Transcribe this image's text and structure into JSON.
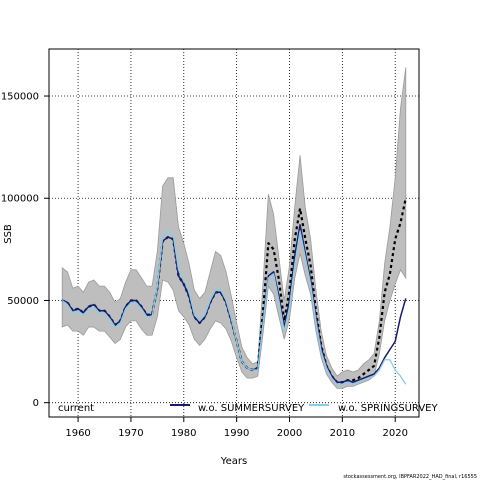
{
  "chart_data": {
    "type": "line",
    "xlabel": "Years",
    "ylabel": "SSB",
    "xlim": [
      1954.5,
      2024.5
    ],
    "ylim": [
      -7000,
      173000
    ],
    "x_ticks": [
      1960,
      1970,
      1980,
      1990,
      2000,
      2010,
      2020
    ],
    "y_ticks": [
      0,
      50000,
      100000,
      150000
    ],
    "x_tick_labels": [
      "1960",
      "1970",
      "1980",
      "1990",
      "2000",
      "2010",
      "2020"
    ],
    "y_tick_labels": [
      "0",
      "50000",
      "100000",
      "150000"
    ],
    "grid": true,
    "legend_position": "bottom",
    "x": [
      1957,
      1958,
      1959,
      1960,
      1961,
      1962,
      1963,
      1964,
      1965,
      1966,
      1967,
      1968,
      1969,
      1970,
      1971,
      1972,
      1973,
      1974,
      1975,
      1976,
      1977,
      1978,
      1979,
      1980,
      1981,
      1982,
      1983,
      1984,
      1985,
      1986,
      1987,
      1988,
      1989,
      1990,
      1991,
      1992,
      1993,
      1994,
      1995,
      1996,
      1997,
      1998,
      1999,
      2000,
      2001,
      2002,
      2003,
      2004,
      2005,
      2006,
      2007,
      2008,
      2009,
      2010,
      2011,
      2012,
      2013,
      2014,
      2015,
      2016,
      2017,
      2018,
      2019,
      2020,
      2021,
      2022
    ],
    "confidence_band": {
      "name": "current",
      "color": "#bebebe",
      "upper": [
        66000,
        64000,
        56000,
        57000,
        54000,
        59000,
        60000,
        57000,
        57000,
        54000,
        49000,
        51000,
        59000,
        65000,
        65000,
        61000,
        57000,
        57000,
        74000,
        106000,
        110000,
        110000,
        86000,
        78000,
        68000,
        55000,
        51000,
        54000,
        64000,
        74000,
        72000,
        64000,
        52000,
        39000,
        27000,
        22000,
        19000,
        20000,
        59000,
        102000,
        92000,
        71000,
        50000,
        67000,
        96000,
        121000,
        95000,
        80000,
        55000,
        35000,
        23000,
        17000,
        13000,
        15000,
        16000,
        15000,
        16000,
        19000,
        21000,
        24000,
        40000,
        68000,
        86000,
        110000,
        144000,
        164000
      ],
      "lower": [
        37000,
        38000,
        35000,
        35000,
        33000,
        37000,
        37000,
        35000,
        35000,
        32000,
        29000,
        31000,
        37000,
        40000,
        40000,
        36000,
        33000,
        33000,
        42000,
        60000,
        59000,
        55000,
        45000,
        42000,
        38000,
        31000,
        28000,
        31000,
        36000,
        40000,
        39000,
        36000,
        30000,
        22000,
        15000,
        12000,
        12000,
        13000,
        34000,
        57000,
        53000,
        42000,
        31000,
        41000,
        61000,
        73000,
        62000,
        53000,
        35000,
        22000,
        14000,
        10000,
        7000,
        7000,
        8000,
        8000,
        9000,
        10000,
        11000,
        13000,
        24000,
        40000,
        50000,
        58000,
        65000,
        61000
      ]
    },
    "series": [
      {
        "name": "current",
        "color": "#000000",
        "dash": "3,3",
        "values": [
          50000,
          49000,
          45000,
          46000,
          44000,
          47000,
          48000,
          45000,
          45000,
          42000,
          38000,
          40000,
          47000,
          50000,
          50000,
          47000,
          43000,
          43000,
          56000,
          79000,
          81000,
          80000,
          62000,
          58000,
          52000,
          42000,
          39000,
          42000,
          49000,
          54000,
          54000,
          49000,
          40000,
          30000,
          20000,
          17000,
          16000,
          17000,
          45000,
          78000,
          75000,
          60000,
          40000,
          55000,
          80000,
          95000,
          80000,
          67000,
          45000,
          28000,
          18000,
          13000,
          10000,
          10000,
          11000,
          11000,
          12000,
          14000,
          16000,
          18000,
          32000,
          54000,
          63000,
          80000,
          88000,
          100000
        ]
      },
      {
        "name": "w.o. SUMMERSURVEY",
        "color": "#1a1a6e",
        "dash": "",
        "values": [
          50000,
          49000,
          45000,
          46000,
          44000,
          47000,
          48000,
          45000,
          45000,
          42000,
          38000,
          40000,
          47000,
          50000,
          50000,
          47000,
          43000,
          43000,
          56000,
          79000,
          81000,
          80000,
          62000,
          58000,
          52000,
          42000,
          39000,
          42000,
          49000,
          54000,
          54000,
          49000,
          40000,
          30000,
          20000,
          17000,
          16000,
          17000,
          40000,
          62000,
          64000,
          52000,
          37000,
          50000,
          72000,
          87000,
          73000,
          60000,
          42000,
          27000,
          18000,
          13000,
          10000,
          10000,
          11000,
          10000,
          11000,
          12000,
          13000,
          14000,
          17000,
          22000,
          26000,
          30000,
          42000,
          51000
        ]
      },
      {
        "name": "w.o. SPRINGSURVEY",
        "color": "#87ceeb",
        "dash": "",
        "values": [
          50000,
          48000,
          44000,
          45000,
          43000,
          46000,
          47000,
          44000,
          44000,
          41000,
          37000,
          39000,
          46000,
          49000,
          49000,
          46000,
          42000,
          42000,
          57000,
          81000,
          84000,
          82000,
          65000,
          60000,
          54000,
          43000,
          40000,
          43000,
          50000,
          55000,
          55000,
          50000,
          41000,
          30000,
          20000,
          17000,
          16000,
          16000,
          39000,
          61000,
          63000,
          50000,
          35000,
          47000,
          68000,
          84000,
          71000,
          58000,
          40000,
          25000,
          17000,
          12000,
          9000,
          9000,
          10000,
          9000,
          10000,
          11000,
          12000,
          13000,
          16000,
          21000,
          21000,
          16000,
          13000,
          9000
        ]
      }
    ]
  },
  "footnote": "stockassessment.org, IBPFAR2022_HAD_final, r16555"
}
